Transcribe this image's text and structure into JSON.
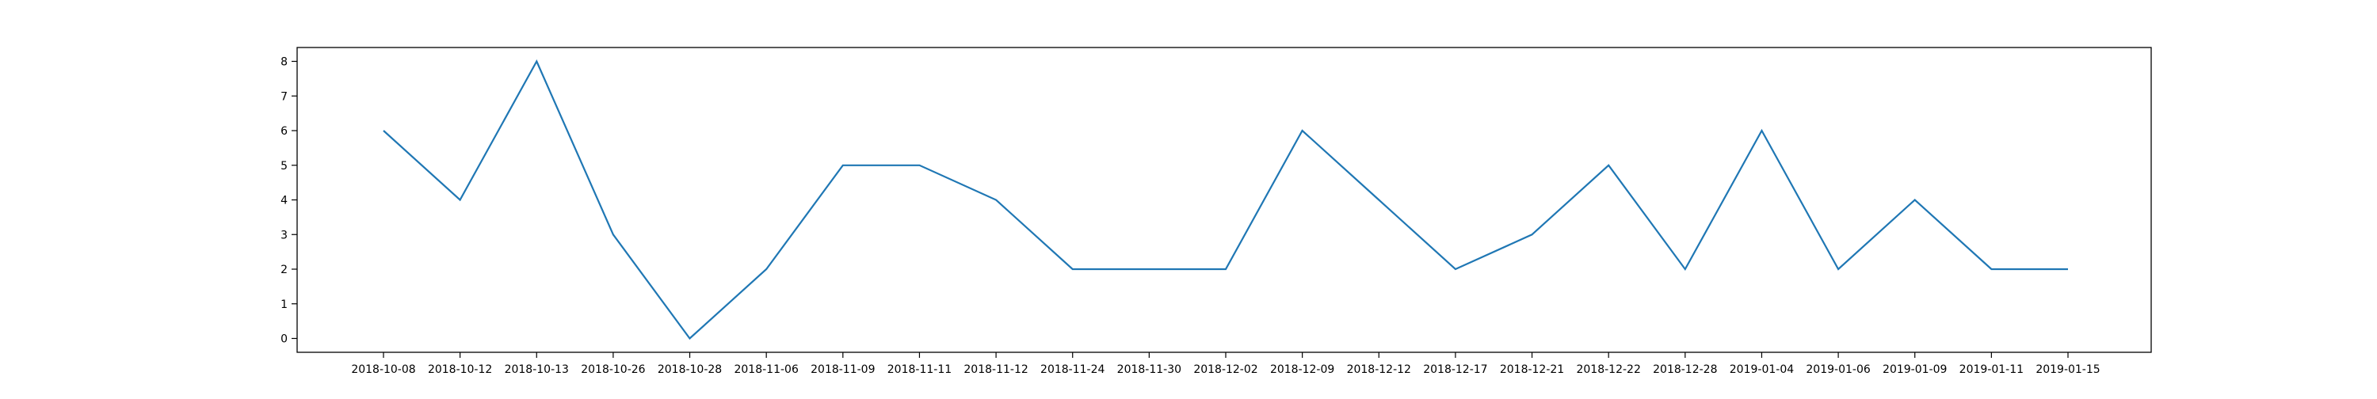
{
  "chart_data": {
    "type": "line",
    "title": "",
    "xlabel": "",
    "ylabel": "",
    "categories": [
      "2018-10-08",
      "2018-10-12",
      "2018-10-13",
      "2018-10-26",
      "2018-10-28",
      "2018-11-06",
      "2018-11-09",
      "2018-11-11",
      "2018-11-12",
      "2018-11-24",
      "2018-11-30",
      "2018-12-02",
      "2018-12-09",
      "2018-12-12",
      "2018-12-17",
      "2018-12-21",
      "2018-12-22",
      "2018-12-28",
      "2019-01-04",
      "2019-01-06",
      "2019-01-09",
      "2019-01-11",
      "2019-01-15"
    ],
    "series": [
      {
        "values": [
          6,
          4,
          8,
          3,
          0,
          2,
          5,
          5,
          4,
          2,
          2,
          2,
          6,
          4,
          2,
          3,
          5,
          2,
          6,
          2,
          4,
          2,
          2
        ],
        "color": "#1f77b4"
      }
    ],
    "yticks": [
      0,
      1,
      2,
      3,
      4,
      5,
      6,
      7,
      8
    ],
    "ylim": [
      -0.4,
      8.4
    ],
    "grid": false,
    "legend": "none"
  }
}
